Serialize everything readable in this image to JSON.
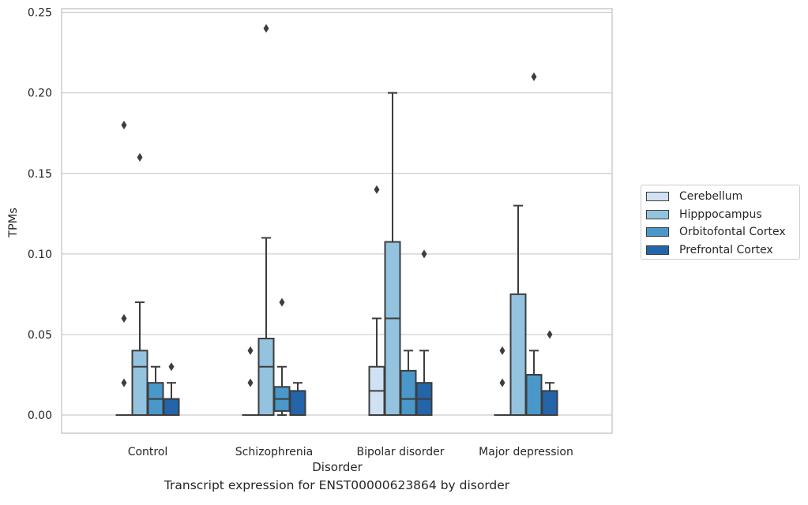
{
  "caption": "Transcript expression for ENST00000623864 by disorder",
  "chart_data": {
    "type": "box",
    "xlabel": "Disorder",
    "ylabel": "TPMs",
    "ylim": [
      -0.012,
      0.252
    ],
    "yticks": [
      "0.00",
      "0.05",
      "0.10",
      "0.15",
      "0.20",
      "0.25"
    ],
    "grid": true,
    "legend_placement": "outside-right",
    "categories": [
      "Control",
      "Schizophrenia",
      "Bipolar disorder",
      "Major depression"
    ],
    "series": [
      {
        "name": "Cerebellum",
        "color": "#cfe1f2",
        "boxes": [
          {
            "q1": 0,
            "median": 0,
            "q3": 0,
            "whisker_low": 0,
            "whisker_high": 0,
            "outliers": [
              0.06,
              0.02,
              0.18
            ]
          },
          {
            "q1": 0,
            "median": 0,
            "q3": 0,
            "whisker_low": 0,
            "whisker_high": 0,
            "outliers": [
              0.04,
              0.02
            ]
          },
          {
            "q1": 0,
            "median": 0.015,
            "q3": 0.03,
            "whisker_low": 0,
            "whisker_high": 0.06,
            "outliers": [
              0.14
            ]
          },
          {
            "q1": 0,
            "median": 0,
            "q3": 0,
            "whisker_low": 0,
            "whisker_high": 0,
            "outliers": [
              0.04,
              0.02
            ]
          }
        ]
      },
      {
        "name": "Hipppocampus",
        "color": "#93c3de",
        "boxes": [
          {
            "q1": 0,
            "median": 0.03,
            "q3": 0.04,
            "whisker_low": 0,
            "whisker_high": 0.07,
            "outliers": [
              0.16
            ]
          },
          {
            "q1": 0,
            "median": 0.03,
            "q3": 0.0475,
            "whisker_low": 0,
            "whisker_high": 0.11,
            "outliers": [
              0.24
            ]
          },
          {
            "q1": 0,
            "median": 0.06,
            "q3": 0.1075,
            "whisker_low": 0,
            "whisker_high": 0.2,
            "outliers": []
          },
          {
            "q1": 0,
            "median": 0,
            "q3": 0.075,
            "whisker_low": 0,
            "whisker_high": 0.13,
            "outliers": []
          }
        ]
      },
      {
        "name": "Orbitofontal Cortex",
        "color": "#4a98c9",
        "boxes": [
          {
            "q1": 0,
            "median": 0.01,
            "q3": 0.02,
            "whisker_low": 0,
            "whisker_high": 0.03,
            "outliers": []
          },
          {
            "q1": 0.0025,
            "median": 0.01,
            "q3": 0.0175,
            "whisker_low": 0,
            "whisker_high": 0.03,
            "outliers": [
              0.07
            ]
          },
          {
            "q1": 0,
            "median": 0.01,
            "q3": 0.0275,
            "whisker_low": 0,
            "whisker_high": 0.04,
            "outliers": []
          },
          {
            "q1": 0,
            "median": 0,
            "q3": 0.025,
            "whisker_low": 0,
            "whisker_high": 0.04,
            "outliers": [
              0.21
            ]
          }
        ]
      },
      {
        "name": "Prefrontal Cortex",
        "color": "#2365a8",
        "boxes": [
          {
            "q1": 0,
            "median": 0.01,
            "q3": 0.01,
            "whisker_low": 0,
            "whisker_high": 0.02,
            "outliers": [
              0.03
            ]
          },
          {
            "q1": 0,
            "median": 0,
            "q3": 0.015,
            "whisker_low": 0,
            "whisker_high": 0.02,
            "outliers": []
          },
          {
            "q1": 0,
            "median": 0.01,
            "q3": 0.02,
            "whisker_low": 0,
            "whisker_high": 0.04,
            "outliers": [
              0.1
            ]
          },
          {
            "q1": 0,
            "median": 0,
            "q3": 0.015,
            "whisker_low": 0,
            "whisker_high": 0.02,
            "outliers": [
              0.05
            ]
          }
        ]
      }
    ]
  }
}
